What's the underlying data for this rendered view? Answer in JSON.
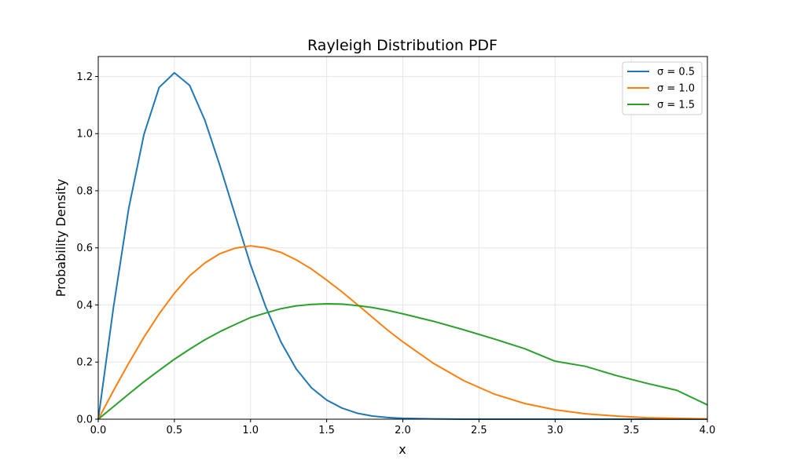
{
  "chart_data": {
    "type": "line",
    "title": "Rayleigh Distribution PDF",
    "xlabel": "x",
    "ylabel": "Probability Density",
    "xlim": [
      0,
      4
    ],
    "ylim": [
      0,
      1.27
    ],
    "xticks": [
      0.0,
      0.5,
      1.0,
      1.5,
      2.0,
      2.5,
      3.0,
      3.5,
      4.0
    ],
    "yticks": [
      0.0,
      0.2,
      0.4,
      0.6,
      0.8,
      1.0,
      1.2
    ],
    "grid": true,
    "legend_position": "top-right",
    "x": [
      0.0,
      0.1,
      0.2,
      0.3,
      0.4,
      0.5,
      0.6,
      0.7,
      0.8,
      0.9,
      1.0,
      1.1,
      1.2,
      1.3,
      1.4,
      1.5,
      1.6,
      1.7,
      1.8,
      1.9,
      2.0,
      2.2,
      2.4,
      2.6,
      2.8,
      3.0,
      3.2,
      3.4,
      3.6,
      3.8,
      4.0
    ],
    "series": [
      {
        "name": "σ = 0.5",
        "color": "#1f77b4",
        "values": [
          0.0,
          0.392,
          0.738,
          0.997,
          1.162,
          1.213,
          1.169,
          1.047,
          0.886,
          0.713,
          0.541,
          0.393,
          0.27,
          0.176,
          0.11,
          0.067,
          0.039,
          0.021,
          0.011,
          0.006,
          0.003,
          0.001,
          0.0,
          0.0,
          0.0,
          0.0,
          0.0,
          0.0,
          0.0,
          0.0,
          0.0
        ]
      },
      {
        "name": "σ = 1.0",
        "color": "#ff7f0e",
        "values": [
          0.0,
          0.1,
          0.196,
          0.287,
          0.369,
          0.441,
          0.502,
          0.547,
          0.58,
          0.599,
          0.607,
          0.6,
          0.584,
          0.558,
          0.526,
          0.487,
          0.446,
          0.402,
          0.357,
          0.312,
          0.271,
          0.196,
          0.135,
          0.088,
          0.055,
          0.033,
          0.019,
          0.011,
          0.005,
          0.003,
          0.001
        ]
      },
      {
        "name": "σ = 1.5",
        "color": "#2ca02c",
        "values": [
          0.0,
          0.044,
          0.088,
          0.131,
          0.171,
          0.21,
          0.245,
          0.278,
          0.307,
          0.332,
          0.356,
          0.372,
          0.387,
          0.397,
          0.402,
          0.404,
          0.403,
          0.398,
          0.391,
          0.381,
          0.369,
          0.343,
          0.313,
          0.281,
          0.247,
          0.203,
          0.185,
          0.153,
          0.126,
          0.101,
          0.05
        ]
      }
    ]
  }
}
